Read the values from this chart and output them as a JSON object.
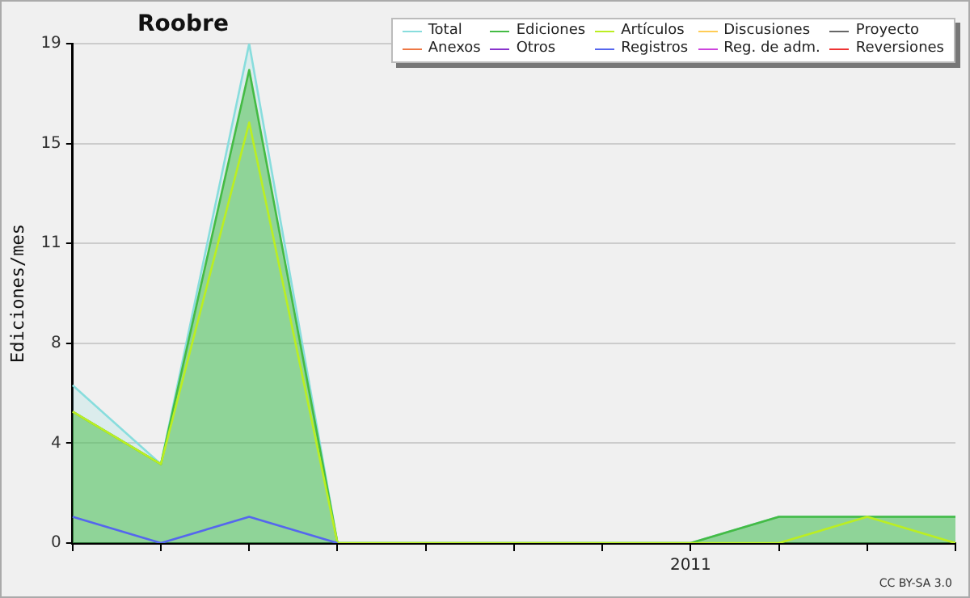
{
  "chart_data": {
    "type": "line",
    "title": "Roobre",
    "ylabel": "Ediciones/mes",
    "categories": [
      null,
      null,
      null,
      null,
      null,
      null,
      null,
      "2011",
      null,
      null,
      null
    ],
    "ylim": [
      0,
      19
    ],
    "yticks": [
      0,
      {
        "value": 3.8,
        "label": "4"
      },
      {
        "value": 7.6,
        "label": "8"
      },
      {
        "value": 11.4,
        "label": "11"
      },
      {
        "value": 15.2,
        "label": "15"
      },
      19
    ],
    "grid": "y",
    "legend": "top right",
    "marker": "none",
    "line_style": "solid",
    "annotations": [
      "CC BY-SA 3.0"
    ],
    "series": [
      {
        "name": "Total",
        "type": "area",
        "color": "#88dddd",
        "values": [
          6,
          3,
          19,
          0,
          0,
          0,
          0,
          0,
          1,
          1,
          1
        ]
      },
      {
        "name": "Ediciones",
        "type": "area",
        "color": "#44bb44",
        "values": [
          5,
          3,
          18,
          0,
          0,
          0,
          0,
          0,
          1,
          1,
          1
        ]
      },
      {
        "name": "Artículos",
        "color": "#bbee22",
        "values": [
          5,
          3,
          16,
          0,
          0,
          0,
          0,
          0,
          0,
          1,
          0
        ]
      },
      {
        "name": "Discusiones",
        "type": "line",
        "color": "#ffcc55",
        "values": [
          null,
          null,
          null,
          null,
          null,
          null,
          null,
          null,
          null,
          null,
          null
        ]
      },
      {
        "name": "Proyecto",
        "type": "line",
        "color": "#666666",
        "values": [
          null,
          null,
          null,
          null,
          null,
          null,
          null,
          null,
          null,
          null,
          null
        ]
      },
      {
        "name": "Anexos",
        "type": "line",
        "color": "#ee7744",
        "values": [
          null,
          null,
          null,
          null,
          null,
          null,
          null,
          null,
          null,
          null,
          null
        ]
      },
      {
        "name": "Otros",
        "type": "line",
        "color": "#8833cc",
        "values": [
          null,
          null,
          null,
          null,
          null,
          null,
          null,
          null,
          null,
          null,
          null
        ]
      },
      {
        "name": "Registros",
        "color": "#5566ee",
        "values": [
          1,
          0,
          1,
          0,
          null,
          null,
          null,
          null,
          null,
          null,
          null
        ]
      },
      {
        "name": "Reg. de adm.",
        "type": "line",
        "color": "#cc44dd",
        "values": [
          null,
          null,
          null,
          null,
          null,
          null,
          null,
          null,
          null,
          null,
          null
        ]
      },
      {
        "name": "Reversiones",
        "type": "line",
        "color": "#ee3333",
        "values": [
          null,
          null,
          null,
          null,
          null,
          null,
          null,
          null,
          null,
          null,
          null
        ]
      }
    ]
  }
}
